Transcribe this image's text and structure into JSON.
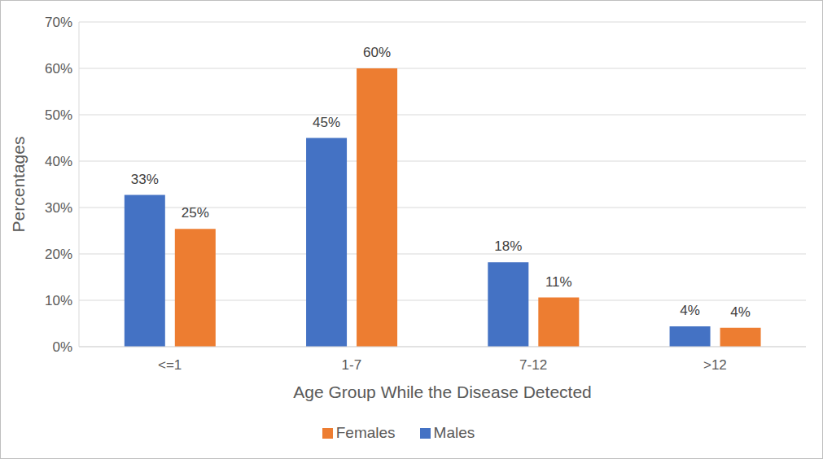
{
  "chart_data": {
    "type": "bar",
    "x_label": "Age Group While the Disease Detected",
    "y_label": "Percentages",
    "categories": [
      "<=1",
      "1-7",
      "7-12",
      ">12"
    ],
    "series": [
      {
        "name": "Males",
        "color": "#4472c4",
        "values": [
          32.7,
          45,
          18.2,
          4.4
        ],
        "value_labels": [
          "33%",
          "45%",
          "18%",
          "4%"
        ]
      },
      {
        "name": "Females",
        "color": "#ed7d31",
        "values": [
          25.4,
          60,
          10.6,
          4.1
        ],
        "value_labels": [
          "25%",
          "60%",
          "11%",
          "4%"
        ]
      }
    ],
    "ylim": [
      0,
      70
    ],
    "yticks": [
      {
        "value": 0,
        "label": "0%"
      },
      {
        "value": 10,
        "label": "10%"
      },
      {
        "value": 20,
        "label": "20%"
      },
      {
        "value": 30,
        "label": "30%"
      },
      {
        "value": 40,
        "label": "40%"
      },
      {
        "value": 50,
        "label": "50%"
      },
      {
        "value": 60,
        "label": "60%"
      },
      {
        "value": 70,
        "label": "70%"
      }
    ],
    "grid": true,
    "data_labels": true,
    "legend": "bottom"
  }
}
